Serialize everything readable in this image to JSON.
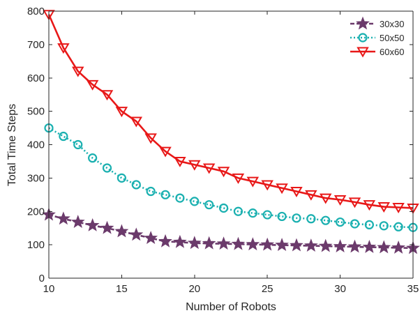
{
  "chart_data": {
    "type": "line",
    "xlabel": "Number of Robots",
    "ylabel": "Total Time Steps",
    "xlim": [
      10,
      35
    ],
    "ylim": [
      0,
      800
    ],
    "xticks": [
      10,
      15,
      20,
      25,
      30,
      35
    ],
    "yticks": [
      0,
      100,
      200,
      300,
      400,
      500,
      600,
      700,
      800
    ],
    "grid": false,
    "legend_position": "top-right",
    "x": [
      10,
      11,
      12,
      13,
      14,
      15,
      16,
      17,
      18,
      19,
      20,
      21,
      22,
      23,
      24,
      25,
      26,
      27,
      28,
      29,
      30,
      31,
      32,
      33,
      34,
      35
    ],
    "series": [
      {
        "name": "30x30",
        "color": "#6b3a6b",
        "marker": "star",
        "line_style": "dashed",
        "values": [
          190,
          178,
          168,
          158,
          150,
          140,
          130,
          120,
          110,
          108,
          105,
          104,
          103,
          102,
          101,
          100,
          99,
          98,
          97,
          96,
          95,
          94,
          93,
          92,
          91,
          90
        ]
      },
      {
        "name": "50x50",
        "color": "#1ab0b0",
        "marker": "circle",
        "line_style": "dotted",
        "values": [
          450,
          425,
          400,
          360,
          330,
          300,
          280,
          260,
          250,
          240,
          230,
          220,
          210,
          200,
          195,
          190,
          185,
          180,
          178,
          173,
          168,
          163,
          160,
          157,
          154,
          152
        ]
      },
      {
        "name": "60x60",
        "color": "#e81818",
        "marker": "triangle-down",
        "line_style": "solid",
        "values": [
          790,
          690,
          620,
          580,
          550,
          500,
          470,
          420,
          380,
          350,
          340,
          330,
          320,
          300,
          290,
          280,
          270,
          260,
          250,
          240,
          235,
          228,
          220,
          214,
          212,
          210
        ]
      }
    ]
  }
}
